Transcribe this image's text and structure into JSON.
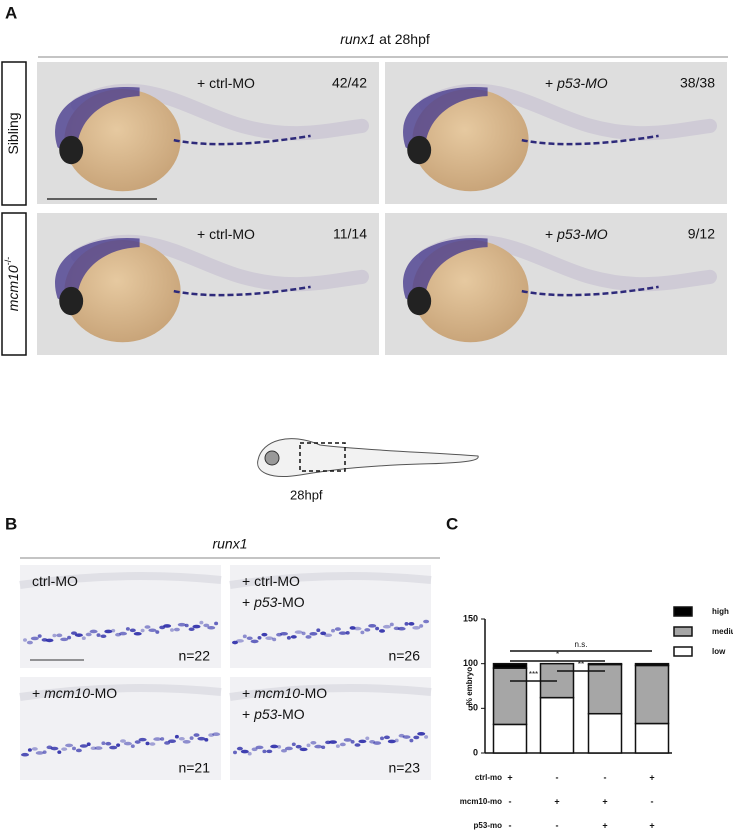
{
  "panel_a": {
    "letter": "A",
    "title": [
      {
        "text": "runx1",
        "italic": true
      },
      {
        "text": " at 28hpf",
        "italic": false
      }
    ],
    "rows": [
      [
        {
          "text": "Sibling",
          "italic": false
        }
      ],
      [
        {
          "text": "mcm10",
          "italic": true
        },
        {
          "text": "-/-",
          "italic": false,
          "sup": true
        }
      ]
    ],
    "images": [
      {
        "treatment": [
          {
            "text": "+ ctrl-MO",
            "italic": false
          }
        ],
        "count": "42/42"
      },
      {
        "treatment": [
          {
            "text": "+ ",
            "italic": false
          },
          {
            "text": "p53-MO",
            "italic": true
          }
        ],
        "count": "38/38"
      },
      {
        "treatment": [
          {
            "text": "+ ctrl-MO",
            "italic": false
          }
        ],
        "count": "11/14"
      },
      {
        "treatment": [
          {
            "text": "+ ",
            "italic": false
          },
          {
            "text": "p53-MO",
            "italic": true
          }
        ],
        "count": "9/12"
      }
    ]
  },
  "schematic": {
    "label": "28hpf"
  },
  "panel_b": {
    "letter": "B",
    "title": "runx1",
    "images": [
      {
        "lines": [
          [
            {
              "text": "ctrl-MO",
              "italic": false
            }
          ]
        ],
        "n": "n=22"
      },
      {
        "lines": [
          [
            {
              "text": "+ ctrl-MO",
              "italic": false
            }
          ],
          [
            {
              "text": "+ ",
              "italic": false
            },
            {
              "text": "p53",
              "italic": true
            },
            {
              "text": "-MO",
              "italic": false
            }
          ]
        ],
        "n": "n=26"
      },
      {
        "lines": [
          [
            {
              "text": "+ ",
              "italic": false
            },
            {
              "text": "mcm10",
              "italic": true
            },
            {
              "text": "-MO",
              "italic": false
            }
          ]
        ],
        "n": "n=21"
      },
      {
        "lines": [
          [
            {
              "text": "+ ",
              "italic": false
            },
            {
              "text": "mcm10",
              "italic": true
            },
            {
              "text": "-MO",
              "italic": false
            }
          ],
          [
            {
              "text": "+ ",
              "italic": false
            },
            {
              "text": "p53",
              "italic": true
            },
            {
              "text": "-MO",
              "italic": false
            }
          ]
        ],
        "n": "n=23"
      }
    ]
  },
  "panel_c": {
    "letter": "C",
    "type": "bar",
    "stacked": true,
    "ylabel": "% embryo",
    "ylim": [
      0,
      150
    ],
    "yticks": [
      0,
      50,
      100,
      150
    ],
    "series": [
      {
        "name": "low",
        "color": "#ffffff",
        "values": [
          32,
          62,
          44,
          33
        ]
      },
      {
        "name": "medium",
        "color": "#a6a6a6",
        "values": [
          63,
          38,
          55,
          65
        ]
      },
      {
        "name": "high",
        "color": "#000000",
        "values": [
          5,
          0,
          1,
          2
        ]
      }
    ],
    "significance": [
      "n.s.",
      "*",
      "**",
      "***"
    ],
    "conditions": [
      {
        "name": "ctrl-mo",
        "values": [
          "+",
          "-",
          "-",
          "+"
        ]
      },
      {
        "name": "mcm10-mo",
        "values": [
          "-",
          "+",
          "+",
          "-"
        ]
      },
      {
        "name": "p53-mo",
        "values": [
          "-",
          "-",
          "+",
          "+"
        ]
      }
    ]
  }
}
